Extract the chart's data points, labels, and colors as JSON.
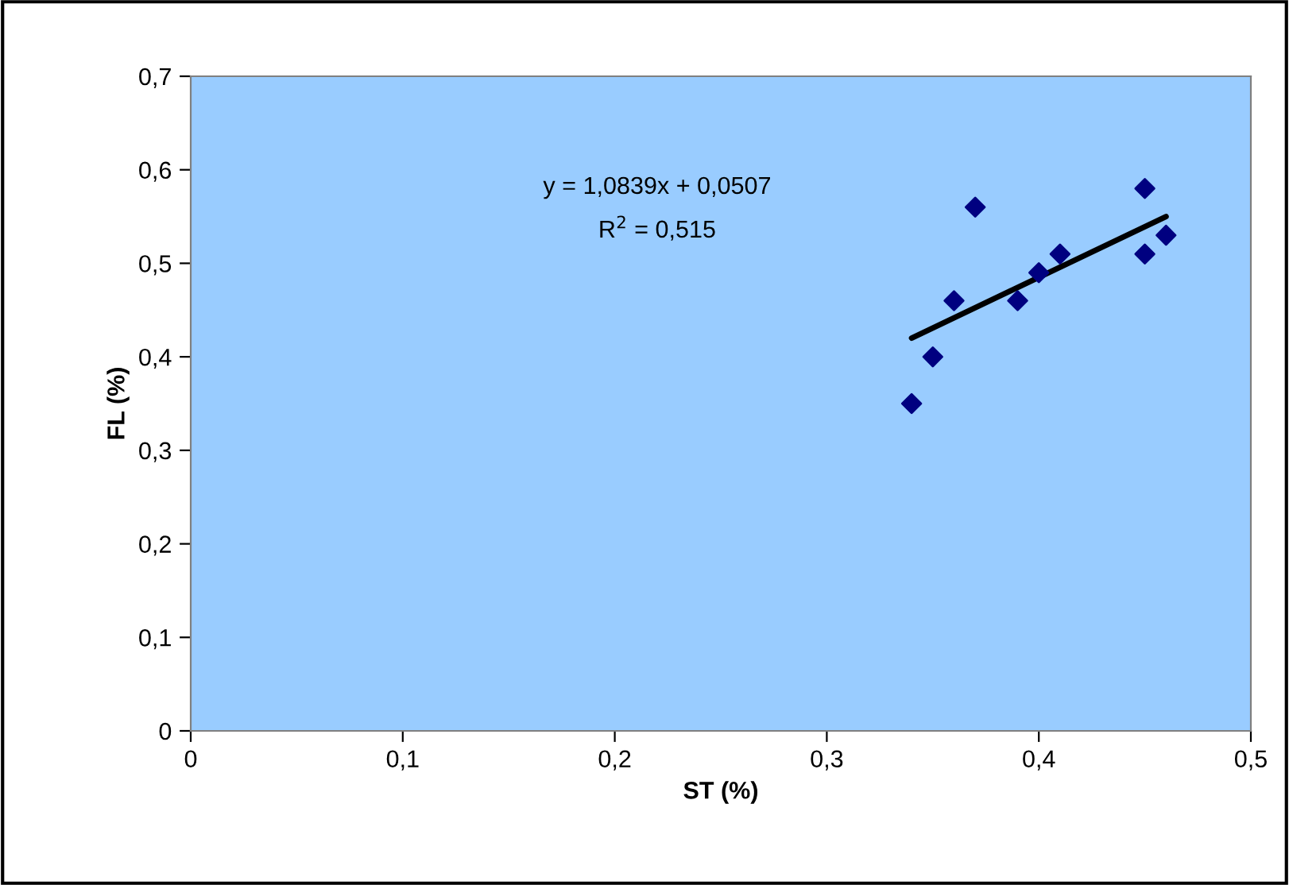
{
  "chart_data": {
    "type": "scatter",
    "xlabel": "ST (%)",
    "ylabel": "FL (%)",
    "grid": false,
    "legend": false,
    "annotations": [
      "y = 1,0839x + 0,0507",
      "R$^{2}$ = 0,515"
    ],
    "series": [
      {
        "marker": "diamond",
        "color": "#000080",
        "x": [
          0.34,
          0.35,
          0.36,
          0.37,
          0.39,
          0.4,
          0.41,
          0.45,
          0.45,
          0.46
        ],
        "values": [
          0.35,
          0.4,
          0.46,
          0.56,
          0.46,
          0.49,
          0.51,
          0.58,
          0.51,
          0.53
        ]
      },
      {
        "type": "line",
        "color": "#000000",
        "x": [
          0.34,
          0.46
        ],
        "values": [
          0.42,
          0.55
        ]
      }
    ],
    "xlim": [
      0,
      0.5
    ],
    "xticks": [
      0,
      {
        "value": 0.1,
        "label": "0,1"
      },
      {
        "value": 0.2,
        "label": "0,2"
      },
      {
        "value": 0.3,
        "label": "0,3"
      },
      {
        "value": 0.4,
        "label": "0,4"
      },
      {
        "value": 0.5,
        "label": "0,5"
      }
    ],
    "ylim": [
      0,
      0.7
    ],
    "yticks": [
      0,
      {
        "value": 0.1,
        "label": "0,1"
      },
      {
        "value": 0.2,
        "label": "0,2"
      },
      {
        "value": 0.3,
        "label": "0,3"
      },
      {
        "value": 0.4,
        "label": "0,4"
      },
      {
        "value": 0.5,
        "label": "0,5"
      },
      {
        "value": 0.6,
        "label": "0,6"
      },
      {
        "value": 0.7,
        "label": "0,7"
      }
    ]
  }
}
